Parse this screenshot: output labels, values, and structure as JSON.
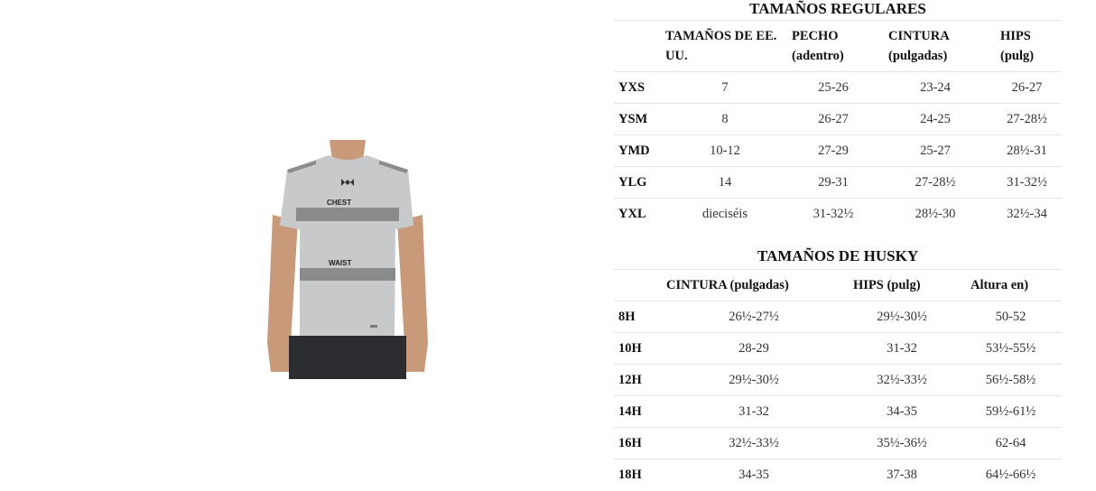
{
  "figure": {
    "chest_label": "CHEST",
    "waist_label": "WAIST",
    "colors": {
      "shirt": "#c8c9cb",
      "band": "#8a8b8d",
      "shorts": "#2b2d31",
      "skin": "#c99a7a"
    }
  },
  "regular": {
    "title": "TAMAÑOS REGULARES",
    "headers": [
      "",
      "TAMAÑOS DE EE. UU.",
      "PECHO (adentro)",
      "CINTURA (pulgadas)",
      "HIPS (pulg)"
    ],
    "rows": [
      [
        "YXS",
        "7",
        "25-26",
        "23-24",
        "26-27"
      ],
      [
        "YSM",
        "8",
        "26-27",
        "24-25",
        "27-28½"
      ],
      [
        "YMD",
        "10-12",
        "27-29",
        "25-27",
        "28½-31"
      ],
      [
        "YLG",
        "14",
        "29-31",
        "27-28½",
        "31-32½"
      ],
      [
        "YXL",
        "dieciséis",
        "31-32½",
        "28½-30",
        "32½-34"
      ]
    ]
  },
  "husky": {
    "title": "TAMAÑOS DE HUSKY",
    "headers": [
      "",
      "CINTURA (pulgadas)",
      "HIPS (pulg)",
      "Altura en)"
    ],
    "rows": [
      [
        "8H",
        "26½-27½",
        "29½-30½",
        "50-52"
      ],
      [
        "10H",
        "28-29",
        "31-32",
        "53½-55½"
      ],
      [
        "12H",
        "29½-30½",
        "32½-33½",
        "56½-58½"
      ],
      [
        "14H",
        "31-32",
        "34-35",
        "59½-61½"
      ],
      [
        "16H",
        "32½-33½",
        "35½-36½",
        "62-64"
      ],
      [
        "18H",
        "34-35",
        "37-38",
        "64½-66½"
      ]
    ]
  }
}
